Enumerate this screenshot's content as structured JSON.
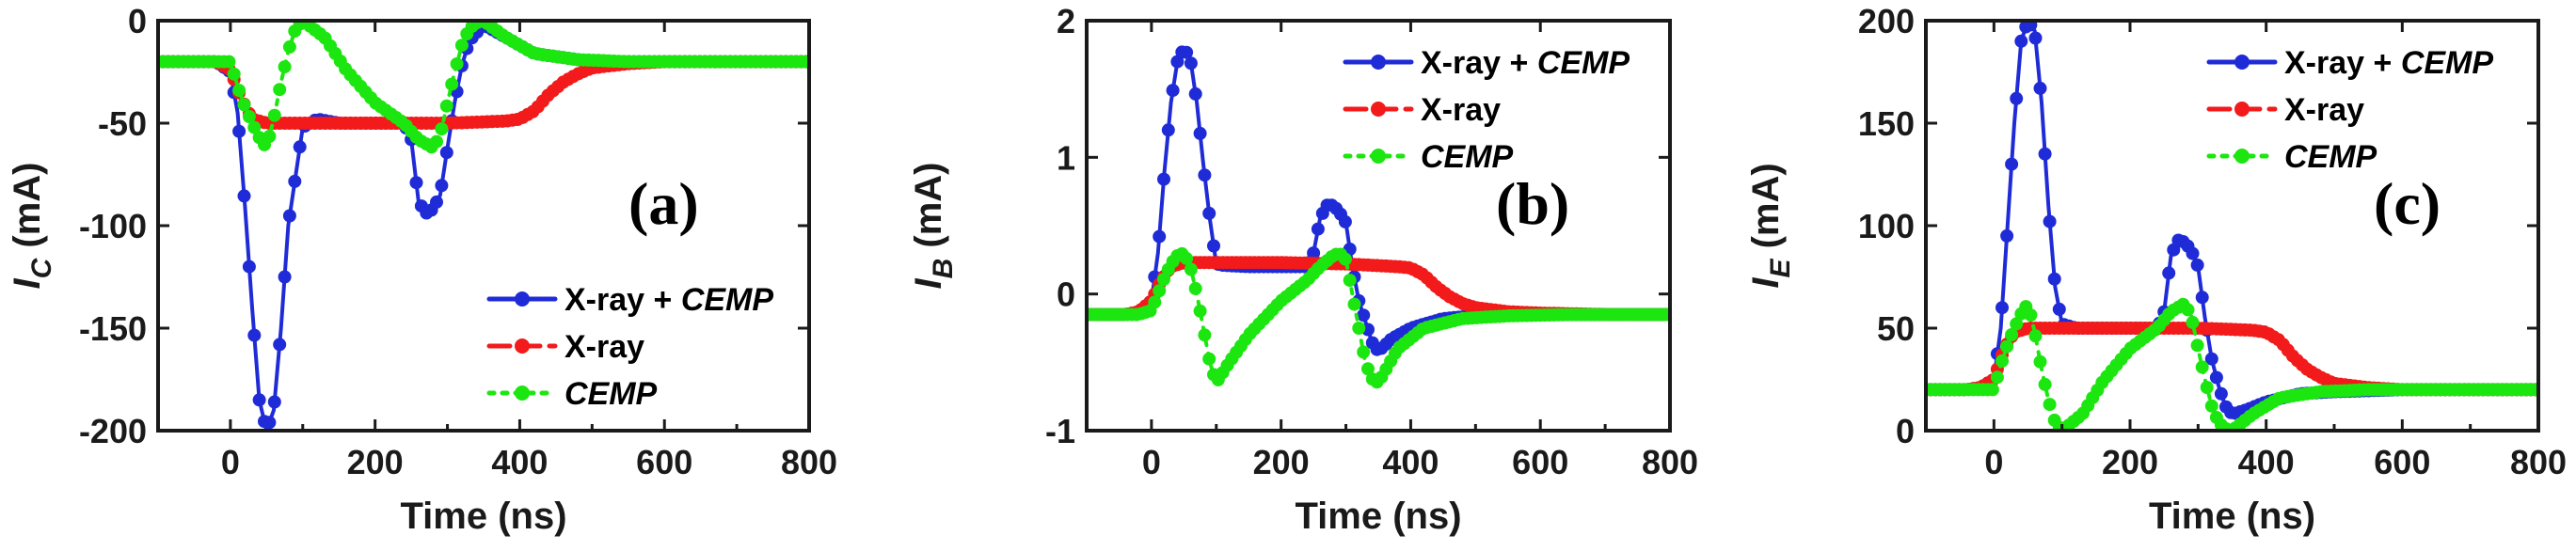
{
  "chart_data": [
    {
      "type": "line",
      "panel_label": "(a)",
      "xlabel": "Time (ns)",
      "ylabel_main": "I",
      "ylabel_sub": "C",
      "ylabel_unit": " (mA)",
      "xlim": [
        -100,
        800
      ],
      "ylim": [
        -200,
        0
      ],
      "xticks": [
        0,
        200,
        400,
        600,
        800
      ],
      "yticks": [
        -200,
        -150,
        -100,
        -50,
        0
      ],
      "legend_position": "lower-right",
      "series": [
        {
          "name": "X-ray + CEMP",
          "legend_parts": [
            "X-ray + ",
            "CEMP"
          ],
          "color": "#1f2bd6",
          "dash": "solid",
          "x": [
            -100,
            -40,
            -20,
            0,
            10,
            20,
            30,
            40,
            50,
            60,
            70,
            80,
            100,
            120,
            150,
            200,
            240,
            250,
            260,
            270,
            280,
            290,
            300,
            310,
            320,
            330,
            350,
            380,
            420,
            500,
            600,
            700,
            800
          ],
          "y": [
            -20,
            -20,
            -20,
            -25,
            -45,
            -90,
            -140,
            -185,
            -200,
            -190,
            -150,
            -100,
            -52,
            -48,
            -50,
            -50,
            -50,
            -58,
            -88,
            -94,
            -92,
            -85,
            -62,
            -40,
            -22,
            -10,
            -2,
            -8,
            -16,
            -20,
            -20,
            -20,
            -20
          ]
        },
        {
          "name": "X-ray",
          "legend_parts": [
            "X-ray"
          ],
          "color": "#f21a1a",
          "dash": "dash",
          "x": [
            -100,
            -40,
            -20,
            0,
            15,
            30,
            50,
            100,
            200,
            300,
            380,
            400,
            420,
            440,
            460,
            480,
            500,
            550,
            600,
            700,
            800
          ],
          "y": [
            -20,
            -20,
            -20,
            -24,
            -38,
            -48,
            -50,
            -50,
            -50,
            -50,
            -49,
            -48,
            -44,
            -36,
            -30,
            -26,
            -23,
            -21,
            -20,
            -20,
            -20
          ]
        },
        {
          "name": "CEMP",
          "legend_parts": [
            "CEMP"
          ],
          "color": "#1ce60f",
          "dash": "dot",
          "x": [
            -100,
            -40,
            -20,
            0,
            10,
            20,
            30,
            40,
            50,
            60,
            70,
            80,
            90,
            100,
            130,
            160,
            200,
            240,
            260,
            280,
            290,
            300,
            310,
            320,
            330,
            340,
            350,
            380,
            420,
            480,
            550,
            650,
            800
          ],
          "y": [
            -20,
            -20,
            -20,
            -20,
            -32,
            -42,
            -50,
            -57,
            -62,
            -48,
            -30,
            -15,
            -4,
            0,
            -8,
            -24,
            -40,
            -50,
            -58,
            -62,
            -56,
            -40,
            -25,
            -12,
            -4,
            -1,
            0,
            -8,
            -16,
            -19,
            -20,
            -20,
            -20
          ]
        }
      ]
    },
    {
      "type": "line",
      "panel_label": "(b)",
      "xlabel": "Time (ns)",
      "ylabel_main": "I",
      "ylabel_sub": "B",
      "ylabel_unit": " (mA)",
      "xlim": [
        -100,
        800
      ],
      "ylim": [
        -1,
        2
      ],
      "xticks": [
        0,
        200,
        400,
        600,
        800
      ],
      "yticks": [
        -1,
        0,
        1,
        2
      ],
      "legend_position": "top-right",
      "series": [
        {
          "name": "X-ray + CEMP",
          "legend_parts": [
            "X-ray + ",
            "CEMP"
          ],
          "color": "#1f2bd6",
          "dash": "solid",
          "x": [
            -100,
            -40,
            -20,
            0,
            10,
            20,
            30,
            40,
            50,
            60,
            70,
            80,
            90,
            100,
            110,
            150,
            200,
            240,
            250,
            260,
            270,
            280,
            290,
            300,
            310,
            320,
            330,
            340,
            350,
            370,
            400,
            450,
            500,
            600,
            800
          ],
          "y": [
            -0.15,
            -0.15,
            -0.14,
            -0.05,
            0.3,
            0.9,
            1.4,
            1.7,
            1.8,
            1.72,
            1.4,
            0.95,
            0.55,
            0.22,
            0.21,
            0.2,
            0.2,
            0.2,
            0.3,
            0.55,
            0.65,
            0.65,
            0.6,
            0.52,
            0.2,
            -0.05,
            -0.2,
            -0.35,
            -0.42,
            -0.33,
            -0.25,
            -0.18,
            -0.16,
            -0.15,
            -0.15
          ]
        },
        {
          "name": "X-ray",
          "legend_parts": [
            "X-ray"
          ],
          "color": "#f21a1a",
          "dash": "dash",
          "x": [
            -100,
            -40,
            -20,
            0,
            15,
            30,
            50,
            100,
            200,
            300,
            380,
            400,
            420,
            440,
            460,
            480,
            500,
            550,
            600,
            700,
            800
          ],
          "y": [
            -0.15,
            -0.15,
            -0.13,
            -0.05,
            0.1,
            0.2,
            0.23,
            0.23,
            0.23,
            0.22,
            0.2,
            0.19,
            0.14,
            0.05,
            -0.02,
            -0.07,
            -0.1,
            -0.13,
            -0.14,
            -0.15,
            -0.15
          ]
        },
        {
          "name": "CEMP",
          "legend_parts": [
            "CEMP"
          ],
          "color": "#1ce60f",
          "dash": "dot",
          "x": [
            -100,
            -40,
            -20,
            0,
            10,
            20,
            30,
            40,
            50,
            60,
            70,
            80,
            90,
            100,
            120,
            150,
            200,
            240,
            260,
            280,
            290,
            300,
            310,
            320,
            330,
            340,
            350,
            380,
            420,
            480,
            550,
            650,
            800
          ],
          "y": [
            -0.15,
            -0.15,
            -0.15,
            -0.12,
            0.0,
            0.12,
            0.22,
            0.28,
            0.3,
            0.2,
            0.0,
            -0.25,
            -0.5,
            -0.65,
            -0.5,
            -0.3,
            -0.05,
            0.1,
            0.2,
            0.28,
            0.3,
            0.25,
            0.0,
            -0.25,
            -0.5,
            -0.62,
            -0.65,
            -0.4,
            -0.25,
            -0.18,
            -0.16,
            -0.15,
            -0.15
          ]
        }
      ]
    },
    {
      "type": "line",
      "panel_label": "(c)",
      "xlabel": "Time (ns)",
      "ylabel_main": "I",
      "ylabel_sub": "E",
      "ylabel_unit": " (mA)",
      "xlim": [
        -100,
        800
      ],
      "ylim": [
        0,
        200
      ],
      "xticks": [
        0,
        200,
        400,
        600,
        800
      ],
      "yticks": [
        0,
        50,
        100,
        150,
        200
      ],
      "legend_position": "top-right",
      "series": [
        {
          "name": "X-ray + CEMP",
          "legend_parts": [
            "X-ray + ",
            "CEMP"
          ],
          "color": "#1f2bd6",
          "dash": "solid",
          "x": [
            -100,
            -40,
            -20,
            0,
            10,
            20,
            30,
            40,
            50,
            60,
            70,
            80,
            90,
            100,
            120,
            150,
            200,
            240,
            250,
            260,
            270,
            280,
            290,
            300,
            310,
            320,
            330,
            340,
            350,
            370,
            400,
            450,
            500,
            600,
            800
          ],
          "y": [
            20,
            20,
            21,
            25,
            50,
            100,
            150,
            190,
            200,
            195,
            160,
            110,
            70,
            52,
            50,
            50,
            50,
            50,
            58,
            85,
            93,
            92,
            88,
            80,
            55,
            35,
            22,
            12,
            8,
            10,
            14,
            18,
            19,
            20,
            20
          ]
        },
        {
          "name": "X-ray",
          "legend_parts": [
            "X-ray"
          ],
          "color": "#f21a1a",
          "dash": "dash",
          "x": [
            -100,
            -40,
            -20,
            0,
            15,
            30,
            50,
            100,
            200,
            300,
            380,
            400,
            420,
            440,
            460,
            480,
            500,
            550,
            600,
            700,
            800
          ],
          "y": [
            20,
            20,
            21,
            25,
            40,
            48,
            50,
            50,
            50,
            50,
            49,
            48,
            44,
            36,
            30,
            26,
            23,
            21,
            20,
            20,
            20
          ]
        },
        {
          "name": "CEMP",
          "legend_parts": [
            "CEMP"
          ],
          "color": "#1ce60f",
          "dash": "dot",
          "x": [
            -100,
            -40,
            -20,
            0,
            10,
            20,
            30,
            40,
            50,
            60,
            70,
            80,
            90,
            100,
            130,
            160,
            200,
            240,
            260,
            280,
            290,
            300,
            310,
            320,
            330,
            340,
            350,
            380,
            420,
            480,
            550,
            650,
            800
          ],
          "y": [
            20,
            20,
            20,
            20,
            32,
            42,
            50,
            57,
            62,
            48,
            30,
            15,
            4,
            0,
            8,
            24,
            40,
            50,
            58,
            62,
            56,
            40,
            25,
            12,
            4,
            1,
            0,
            8,
            16,
            19,
            20,
            20,
            20
          ]
        }
      ]
    }
  ]
}
